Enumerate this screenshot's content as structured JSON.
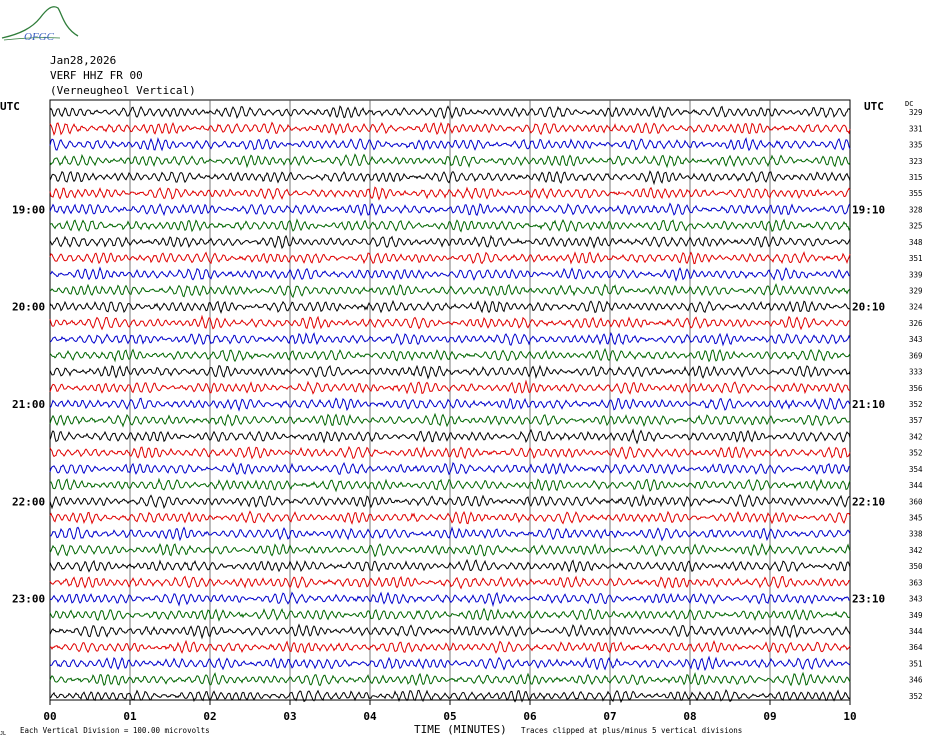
{
  "logo": {
    "text": "OFGC",
    "color": "#2f7d3a",
    "text_color": "#3a5fc0"
  },
  "header": {
    "date": "Jan28,2026",
    "station": "VERF HHZ FR 00",
    "location": "(Verneugheol Vertical)"
  },
  "left_axis_label": "UTC",
  "right_axis_label": "UTC",
  "dc_label": "DC",
  "left_time_labels": [
    "19:00",
    "20:00",
    "21:00",
    "22:00",
    "23:00"
  ],
  "right_time_labels": [
    "19:10",
    "20:10",
    "21:10",
    "22:10",
    "23:10"
  ],
  "dc_offsets": [
    329,
    331,
    335,
    323,
    315,
    355,
    328,
    325,
    348,
    351,
    339,
    329,
    324,
    326,
    343,
    369,
    333,
    356,
    352,
    357,
    342,
    352,
    354,
    344,
    360,
    345,
    338,
    342,
    350,
    363,
    343,
    349,
    344,
    364,
    351,
    346,
    352
  ],
  "x_ticks": [
    "00",
    "01",
    "02",
    "03",
    "04",
    "05",
    "06",
    "07",
    "08",
    "09",
    "10"
  ],
  "footer": {
    "vertical_division": "Each Vertical Division =  100.00 microvolts",
    "xlabel": "TIME (MINUTES)",
    "clip_note": "Traces clipped at plus/minus 5 vertical divisions",
    "corner_mark": "JL"
  },
  "chart_data": {
    "type": "line",
    "title": "",
    "xlabel": "TIME (MINUTES)",
    "xlim": [
      0,
      10
    ],
    "trace_colors": [
      "#000000",
      "#e00000",
      "#0000cc",
      "#006600"
    ],
    "trace_count": 37,
    "grid": "vertical lines every minute"
  }
}
